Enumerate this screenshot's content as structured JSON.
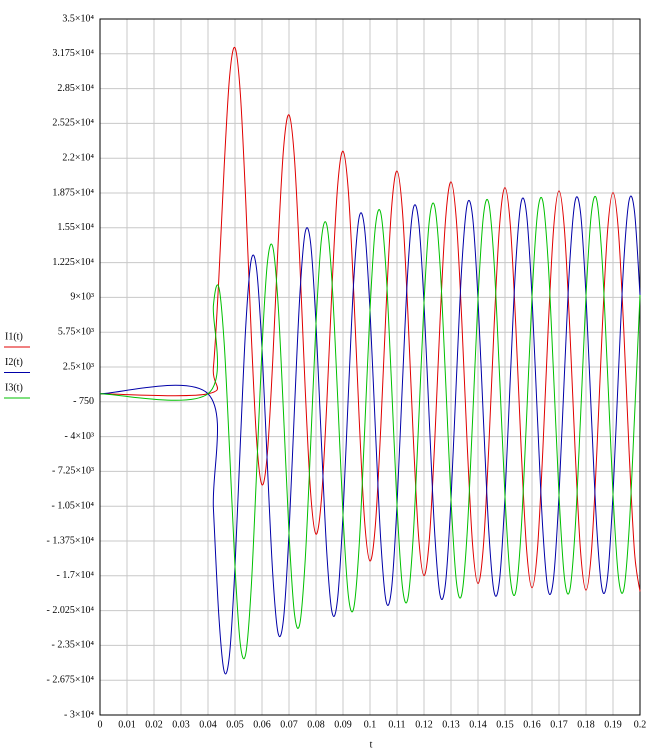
{
  "chart_data": {
    "type": "line",
    "x_label": "t",
    "legend": "left",
    "grid": true,
    "xlim": [
      0,
      0.2
    ],
    "xticks": [
      0,
      0.01,
      0.02,
      0.03,
      0.04,
      0.05,
      0.06,
      0.07,
      0.08,
      0.09,
      0.1,
      0.11,
      0.12,
      0.13,
      0.14,
      0.15,
      0.16,
      0.17,
      0.18,
      0.19,
      0.2
    ],
    "ylim": [
      -30000,
      35000
    ],
    "yticks": [
      {
        "value": 35000,
        "label": "3.5×10⁴"
      },
      {
        "value": 31750,
        "label": "3.175×10⁴"
      },
      {
        "value": 28500,
        "label": "2.85×10⁴"
      },
      {
        "value": 25250,
        "label": "2.525×10⁴"
      },
      {
        "value": 22000,
        "label": "2.2×10⁴"
      },
      {
        "value": 18750,
        "label": "1.875×10⁴"
      },
      {
        "value": 15500,
        "label": "1.55×10⁴"
      },
      {
        "value": 12250,
        "label": "1.225×10⁴"
      },
      {
        "value": 9000,
        "label": "9×10³"
      },
      {
        "value": 5750,
        "label": "5.75×10³"
      },
      {
        "value": 2500,
        "label": "2.5×10³"
      },
      {
        "value": -750,
        "label": "- 750"
      },
      {
        "value": -4000,
        "label": "- 4×10³"
      },
      {
        "value": -7250,
        "label": "- 7.25×10³"
      },
      {
        "value": -10500,
        "label": "- 1.05×10⁴"
      },
      {
        "value": -13750,
        "label": "- 1.375×10⁴"
      },
      {
        "value": -17000,
        "label": "- 1.7×10⁴"
      },
      {
        "value": -20250,
        "label": "- 2.025×10⁴"
      },
      {
        "value": -23500,
        "label": "- 2.35×10⁴"
      },
      {
        "value": -26750,
        "label": "- 2.675×10⁴"
      },
      {
        "value": -30000,
        "label": "- 3×10⁴"
      }
    ],
    "x": [
      0,
      0.04,
      0.042,
      0.044,
      0.046,
      0.048,
      0.05,
      0.052,
      0.054,
      0.056,
      0.058,
      0.06,
      0.062,
      0.064,
      0.066,
      0.068,
      0.07,
      0.072,
      0.074,
      0.076,
      0.078,
      0.08,
      0.082,
      0.084,
      0.086,
      0.088,
      0.09,
      0.092,
      0.094,
      0.096,
      0.098,
      0.1,
      0.102,
      0.104,
      0.106,
      0.108,
      0.11,
      0.112,
      0.114,
      0.116,
      0.118,
      0.12,
      0.122,
      0.124,
      0.126,
      0.128,
      0.13,
      0.132,
      0.134,
      0.136,
      0.138,
      0.14,
      0.142,
      0.144,
      0.146,
      0.148,
      0.15,
      0.152,
      0.154,
      0.156,
      0.158,
      0.16,
      0.162,
      0.164,
      0.166,
      0.168,
      0.17,
      0.172,
      0.174,
      0.176,
      0.178,
      0.18,
      0.182,
      0.184,
      0.186,
      0.188,
      0.19,
      0.192,
      0.194,
      0.196,
      0.198,
      0.2
    ],
    "series": [
      {
        "name": "I1(t)",
        "color": "#e00000",
        "values": [
          0,
          0,
          2450,
          10720,
          21240,
          29620,
          32310,
          27950,
          17880,
          5670,
          -4310,
          -8500,
          -5540,
          3200,
          14160,
          22960,
          26050,
          22050,
          12340,
          450,
          -9210,
          -13110,
          -9880,
          -890,
          10320,
          19350,
          22650,
          18850,
          9330,
          -2380,
          -11880,
          -15620,
          -12240,
          -3110,
          8230,
          17380,
          20800,
          17110,
          7690,
          -3920,
          -13330,
          -16980,
          -13520,
          -4310,
          7100,
          16320,
          19790,
          16170,
          6800,
          -4750,
          -14110,
          -17720,
          -14220,
          -4970,
          6480,
          15740,
          19250,
          15660,
          6320,
          -5210,
          -14540,
          -18120,
          -14600,
          -5330,
          6150,
          15420,
          18950,
          15380,
          6060,
          -5450,
          -14770,
          -18340,
          -14800,
          -5520,
          5960,
          15250,
          18790,
          15230,
          5920,
          -5590,
          -14900,
          -18460
        ]
      },
      {
        "name": "I2(t)",
        "color": "#0000a8",
        "values": [
          0,
          0,
          -10690,
          -20680,
          -25940,
          -24290,
          -16150,
          -4500,
          6380,
          12480,
          11630,
          4250,
          -6700,
          -16910,
          -22400,
          -20960,
          -13020,
          -1560,
          9150,
          15090,
          14080,
          6550,
          -4530,
          -14870,
          -20480,
          -19150,
          -11320,
          40,
          10650,
          16510,
          15420,
          7810,
          -3350,
          -13760,
          -19430,
          -18170,
          -10400,
          910,
          11470,
          17280,
          16140,
          8490,
          -2710,
          -13160,
          -18870,
          -17630,
          -9900,
          1380,
          11920,
          17690,
          16530,
          8860,
          -2360,
          -12830,
          -18560,
          -17350,
          -9630,
          1640,
          12160,
          17920,
          16750,
          9060,
          -2170,
          -12660,
          -18390,
          -17190,
          -9480,
          1780,
          12290,
          18040,
          16860,
          9170,
          -2070,
          -12560,
          -18300,
          -17100,
          -9400,
          1850,
          12360,
          18110,
          16920,
          9230
        ]
      },
      {
        "name": "I3(t)",
        "color": "#00c000",
        "values": [
          0,
          0,
          8240,
          9960,
          4700,
          -5330,
          -16160,
          -23450,
          -24260,
          -18150,
          -7320,
          4250,
          12240,
          13710,
          8240,
          -2000,
          -13030,
          -20490,
          -21490,
          -15540,
          -4870,
          6560,
          14410,
          15760,
          10160,
          -200,
          -11330,
          -18890,
          -19980,
          -14130,
          -3540,
          7810,
          15590,
          16870,
          11200,
          790,
          -10400,
          -18020,
          -19160,
          -13360,
          -2810,
          8490,
          16230,
          17470,
          11770,
          1310,
          -9890,
          -17550,
          -18720,
          -12940,
          -2420,
          8860,
          16580,
          17800,
          12080,
          1610,
          -9620,
          -17300,
          -18480,
          -12710,
          -2210,
          9060,
          16770,
          17990,
          12240,
          1770,
          -9470,
          -17160,
          -18350,
          -12590,
          -2090,
          9170,
          16870,
          18080,
          12340,
          1850,
          -9390,
          -17080,
          -18280,
          -12520,
          -2020,
          9230
        ]
      }
    ]
  }
}
